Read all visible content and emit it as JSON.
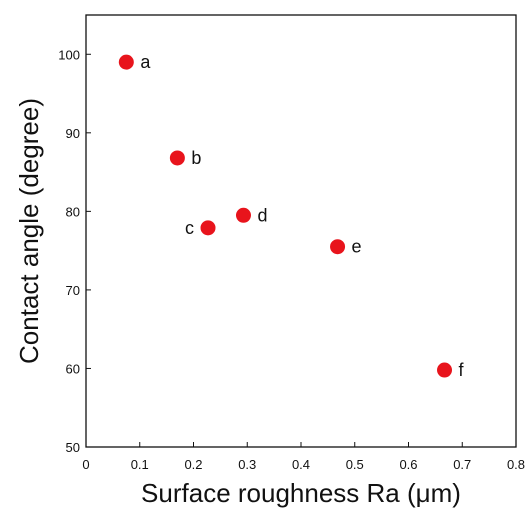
{
  "chart_data": {
    "type": "scatter",
    "title": "",
    "xlabel": "Surface roughness Ra (μm)",
    "ylabel": "Contact angle (degree)",
    "xlim": [
      0,
      0.8
    ],
    "ylim": [
      50,
      105
    ],
    "xticks": [
      0,
      0.1,
      0.2,
      0.3,
      0.4,
      0.5,
      0.6,
      0.7,
      0.8
    ],
    "xtick_labels": [
      "0",
      "0.1",
      "0.2",
      "0.3",
      "0.4",
      "0.5",
      "0.6",
      "0.7",
      "0.8"
    ],
    "yticks": [
      50,
      60,
      70,
      80,
      90,
      100
    ],
    "ytick_labels": [
      "50",
      "60",
      "70",
      "80",
      "90",
      "100"
    ],
    "grid": false,
    "legend": "none",
    "marker_color": "#e8141c",
    "points": [
      {
        "label": "a",
        "x": 0.075,
        "y": 99.0,
        "label_side": "right"
      },
      {
        "label": "b",
        "x": 0.17,
        "y": 86.8,
        "label_side": "right"
      },
      {
        "label": "c",
        "x": 0.227,
        "y": 77.9,
        "label_side": "left"
      },
      {
        "label": "d",
        "x": 0.293,
        "y": 79.5,
        "label_side": "right"
      },
      {
        "label": "e",
        "x": 0.468,
        "y": 75.5,
        "label_side": "right"
      },
      {
        "label": "f",
        "x": 0.667,
        "y": 59.8,
        "label_side": "right"
      }
    ]
  }
}
